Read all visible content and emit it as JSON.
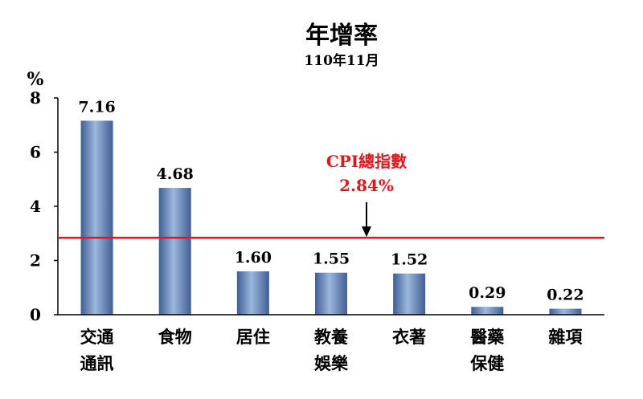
{
  "chart_data": {
    "type": "bar",
    "title": "年增率",
    "subtitle": "110年11月",
    "ylabel": "%",
    "ylim": [
      0,
      8
    ],
    "yticks": [
      0,
      2,
      4,
      6,
      8
    ],
    "grid": false,
    "categories": [
      [
        "交通",
        "通訊"
      ],
      [
        "食物"
      ],
      [
        "居住"
      ],
      [
        "教養",
        "娛樂"
      ],
      [
        "衣著"
      ],
      [
        "醫藥",
        "保健"
      ],
      [
        "雜項"
      ]
    ],
    "values": [
      7.16,
      4.68,
      1.6,
      1.55,
      1.52,
      0.29,
      0.22
    ],
    "data_labels": [
      "7.16",
      "4.68",
      "1.60",
      "1.55",
      "1.52",
      "0.29",
      "0.22"
    ],
    "reference_line": {
      "value": 2.84,
      "label_line1": "CPI總指數",
      "label_line2": "2.84%",
      "color": "#e8141b"
    },
    "bar_color": "#5a7fb5"
  }
}
